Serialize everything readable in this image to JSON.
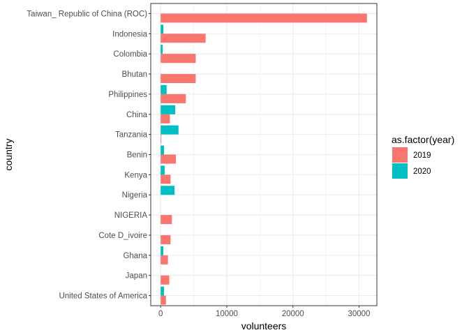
{
  "chart_data": {
    "type": "bar",
    "orientation": "horizontal",
    "xlabel": "volunteers",
    "ylabel": "country",
    "xlim": [
      -1500,
      32700
    ],
    "xticks": [
      0,
      10000,
      20000,
      30000
    ],
    "grid": true,
    "legend": {
      "title": "as.factor(year)",
      "position": "right"
    },
    "categories": [
      "Taiwan_ Republic of China (ROC)",
      "Indonesia",
      "Colombia",
      "Bhutan",
      "Philippines",
      "China",
      "Tanzania",
      "Benin",
      "Kenya",
      "Nigeria",
      "NIGERIA",
      "Cote D_ivoire",
      "Ghana",
      "Japan",
      "United States of America"
    ],
    "series": [
      {
        "name": "2019",
        "color": "#F8766D",
        "values": [
          31200,
          6800,
          5300,
          5300,
          3800,
          1400,
          100,
          2300,
          1500,
          null,
          1700,
          1500,
          1100,
          1300,
          800
        ]
      },
      {
        "name": "2020",
        "color": "#00BFC4",
        "values": [
          null,
          400,
          300,
          null,
          900,
          2200,
          2700,
          500,
          600,
          2100,
          null,
          null,
          400,
          null,
          500
        ]
      }
    ]
  }
}
